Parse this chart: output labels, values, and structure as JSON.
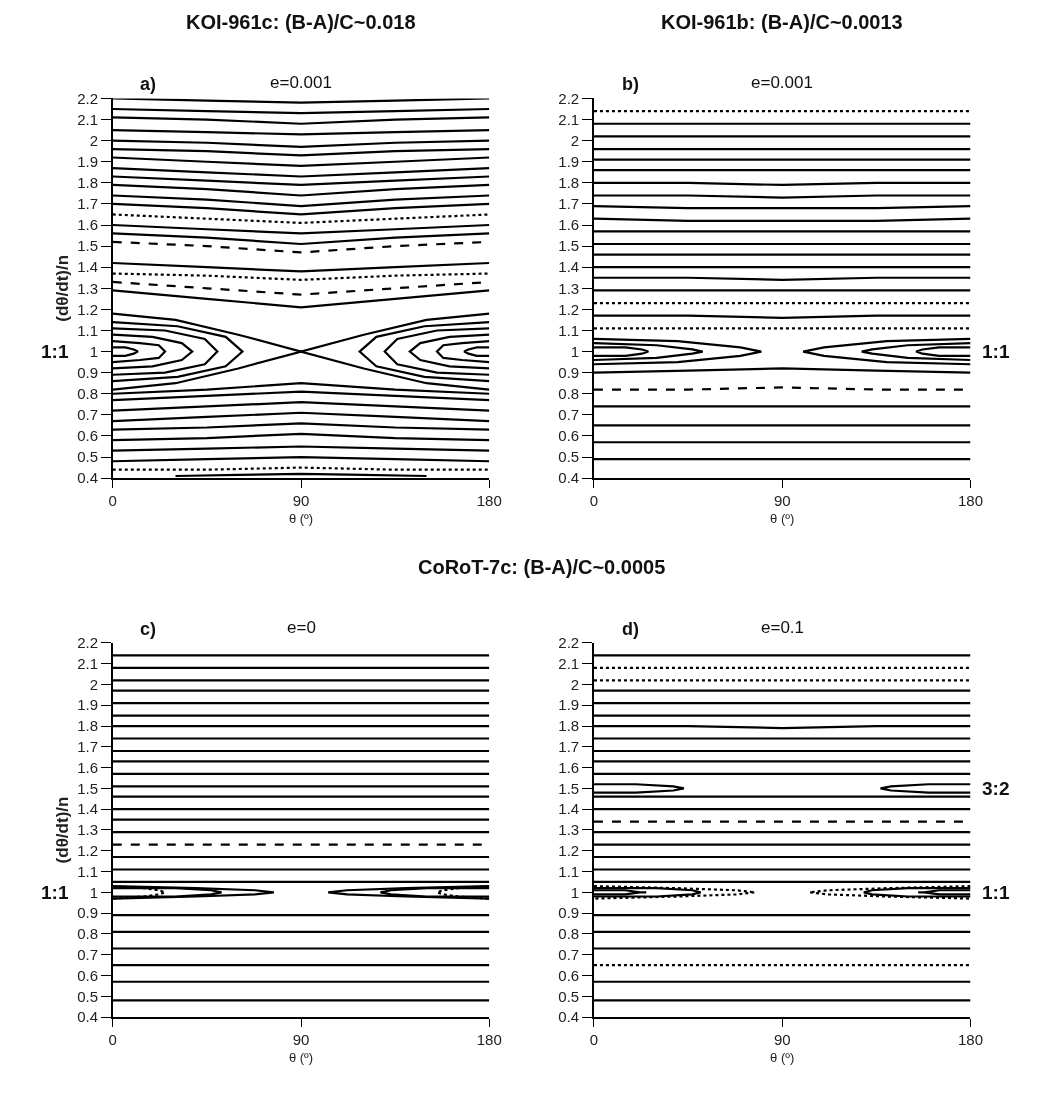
{
  "chart_data": [
    {
      "type": "line",
      "title": "KOI-961c: (B-A)/C~0.018",
      "subtitle": "e=0.001",
      "xlabel": "θ (º)",
      "ylabel": "(dθ/dt)/n",
      "xlim": [
        0,
        180
      ],
      "ylim": [
        0.4,
        2.2
      ],
      "xticks": [
        0,
        90,
        180
      ],
      "yticks": [
        0.4,
        0.5,
        0.6,
        0.7,
        0.8,
        0.9,
        1,
        1.1,
        1.2,
        1.3,
        1.4,
        1.5,
        1.6,
        1.7,
        1.8,
        1.9,
        2,
        2.1,
        2.2
      ],
      "marker": "none",
      "annotations": [
        "a)",
        "1:1"
      ],
      "series": [
        {
          "color": "#000000",
          "x": [
            0,
            45,
            90,
            135,
            180
          ],
          "values": [
            2.2,
            2.19,
            2.18,
            2.19,
            2.2
          ]
        },
        {
          "color": "#000000",
          "x": [
            0,
            45,
            90,
            135,
            180
          ],
          "values": [
            2.15,
            2.14,
            2.13,
            2.14,
            2.15
          ]
        },
        {
          "color": "#000000",
          "x": [
            0,
            45,
            90,
            135,
            180
          ],
          "values": [
            2.11,
            2.1,
            2.08,
            2.1,
            2.11
          ]
        },
        {
          "color": "#000000",
          "x": [
            0,
            45,
            90,
            135,
            180
          ],
          "values": [
            2.05,
            2.04,
            2.03,
            2.04,
            2.05
          ]
        },
        {
          "color": "#000000",
          "x": [
            0,
            45,
            90,
            135,
            180
          ],
          "values": [
            2.0,
            1.99,
            1.97,
            1.99,
            2.0
          ]
        },
        {
          "color": "#000000",
          "x": [
            0,
            45,
            90,
            135,
            180
          ],
          "values": [
            1.96,
            1.95,
            1.93,
            1.95,
            1.96
          ]
        },
        {
          "color": "#000000",
          "x": [
            0,
            45,
            90,
            135,
            180
          ],
          "values": [
            1.92,
            1.9,
            1.88,
            1.9,
            1.92
          ]
        },
        {
          "color": "#000000",
          "x": [
            0,
            45,
            90,
            135,
            180
          ],
          "values": [
            1.87,
            1.85,
            1.83,
            1.85,
            1.87
          ]
        },
        {
          "color": "#000000",
          "x": [
            0,
            45,
            90,
            135,
            180
          ],
          "values": [
            1.83,
            1.81,
            1.79,
            1.81,
            1.83
          ]
        },
        {
          "color": "#000000",
          "x": [
            0,
            45,
            90,
            135,
            180
          ],
          "values": [
            1.79,
            1.77,
            1.74,
            1.77,
            1.79
          ]
        },
        {
          "color": "#000000",
          "x": [
            0,
            45,
            90,
            135,
            180
          ],
          "values": [
            1.74,
            1.72,
            1.69,
            1.72,
            1.74
          ]
        },
        {
          "color": "#000000",
          "x": [
            0,
            45,
            90,
            135,
            180
          ],
          "values": [
            1.7,
            1.68,
            1.65,
            1.68,
            1.7
          ]
        },
        {
          "color": "#000000",
          "line_style": "dotted",
          "x": [
            0,
            45,
            90,
            135,
            180
          ],
          "values": [
            1.65,
            1.63,
            1.61,
            1.63,
            1.65
          ]
        },
        {
          "color": "#000000",
          "x": [
            0,
            45,
            90,
            135,
            180
          ],
          "values": [
            1.6,
            1.58,
            1.56,
            1.58,
            1.6
          ]
        },
        {
          "color": "#000000",
          "x": [
            0,
            45,
            90,
            135,
            180
          ],
          "values": [
            1.56,
            1.54,
            1.51,
            1.54,
            1.56
          ]
        },
        {
          "color": "#000000",
          "line_style": "dashed",
          "x": [
            0,
            45,
            90,
            135,
            180
          ],
          "values": [
            1.52,
            1.5,
            1.47,
            1.5,
            1.52
          ]
        },
        {
          "color": "#000000",
          "x": [
            0,
            45,
            90,
            135,
            180
          ],
          "values": [
            1.42,
            1.4,
            1.38,
            1.4,
            1.42
          ]
        },
        {
          "color": "#000000",
          "line_style": "dotted",
          "x": [
            0,
            45,
            90,
            135,
            180
          ],
          "values": [
            1.37,
            1.36,
            1.34,
            1.36,
            1.37
          ]
        },
        {
          "color": "#000000",
          "line_style": "dashed",
          "x": [
            0,
            45,
            90,
            135,
            180
          ],
          "values": [
            1.33,
            1.3,
            1.27,
            1.3,
            1.33
          ]
        },
        {
          "color": "#000000",
          "x": [
            0,
            45,
            90,
            135,
            180
          ],
          "values": [
            1.29,
            1.25,
            1.21,
            1.25,
            1.29
          ]
        },
        {
          "color": "#000000",
          "x": [
            0,
            30,
            60,
            90,
            120,
            150,
            180
          ],
          "values": [
            1.18,
            1.15,
            1.08,
            1.0,
            1.08,
            1.15,
            1.18
          ]
        },
        {
          "color": "#000000",
          "x": [
            0,
            30,
            60,
            90,
            120,
            150,
            180
          ],
          "values": [
            0.82,
            0.85,
            0.92,
            1.0,
            0.92,
            0.85,
            0.82
          ]
        },
        {
          "color": "#000000",
          "x": [
            0,
            6,
            10,
            12,
            10,
            6,
            0
          ],
          "values": [
            1.02,
            1.02,
            1.01,
            1,
            0.99,
            0.98,
            0.98
          ]
        },
        {
          "color": "#000000",
          "x": [
            0,
            13,
            22,
            25,
            22,
            13,
            0
          ],
          "values": [
            1.05,
            1.04,
            1.03,
            1,
            0.97,
            0.96,
            0.95
          ]
        },
        {
          "color": "#000000",
          "x": [
            0,
            19,
            33,
            38,
            33,
            19,
            0
          ],
          "values": [
            1.08,
            1.07,
            1.04,
            1,
            0.96,
            0.93,
            0.92
          ]
        },
        {
          "color": "#000000",
          "x": [
            0,
            25,
            44,
            50,
            44,
            25,
            0
          ],
          "values": [
            1.11,
            1.1,
            1.06,
            1,
            0.94,
            0.9,
            0.89
          ]
        },
        {
          "color": "#000000",
          "x": [
            0,
            31,
            54,
            62,
            54,
            31,
            0
          ],
          "values": [
            1.14,
            1.12,
            1.07,
            1,
            0.93,
            0.88,
            0.86
          ]
        },
        {
          "color": "#000000",
          "x": [
            180,
            174,
            170,
            168,
            170,
            174,
            180
          ],
          "values": [
            1.02,
            1.02,
            1.01,
            1,
            0.99,
            0.98,
            0.98
          ]
        },
        {
          "color": "#000000",
          "x": [
            180,
            167,
            158,
            155,
            158,
            167,
            180
          ],
          "values": [
            1.05,
            1.04,
            1.03,
            1,
            0.97,
            0.96,
            0.95
          ]
        },
        {
          "color": "#000000",
          "x": [
            180,
            161,
            147,
            142,
            147,
            161,
            180
          ],
          "values": [
            1.08,
            1.07,
            1.04,
            1,
            0.96,
            0.93,
            0.92
          ]
        },
        {
          "color": "#000000",
          "x": [
            180,
            155,
            136,
            130,
            136,
            155,
            180
          ],
          "values": [
            1.11,
            1.1,
            1.06,
            1,
            0.94,
            0.9,
            0.89
          ]
        },
        {
          "color": "#000000",
          "x": [
            180,
            149,
            126,
            118,
            126,
            149,
            180
          ],
          "values": [
            1.14,
            1.12,
            1.07,
            1,
            0.93,
            0.88,
            0.86
          ]
        },
        {
          "color": "#000000",
          "x": [
            0,
            45,
            90,
            135,
            180
          ],
          "values": [
            0.8,
            0.82,
            0.85,
            0.82,
            0.8
          ]
        },
        {
          "color": "#000000",
          "x": [
            0,
            45,
            90,
            135,
            180
          ],
          "values": [
            0.77,
            0.79,
            0.81,
            0.79,
            0.77
          ]
        },
        {
          "color": "#000000",
          "x": [
            0,
            45,
            90,
            135,
            180
          ],
          "values": [
            0.72,
            0.74,
            0.76,
            0.74,
            0.72
          ]
        },
        {
          "color": "#000000",
          "x": [
            0,
            45,
            90,
            135,
            180
          ],
          "values": [
            0.67,
            0.69,
            0.71,
            0.69,
            0.67
          ]
        },
        {
          "color": "#000000",
          "x": [
            0,
            45,
            90,
            135,
            180
          ],
          "values": [
            0.63,
            0.64,
            0.66,
            0.64,
            0.63
          ]
        },
        {
          "color": "#000000",
          "x": [
            0,
            45,
            90,
            135,
            180
          ],
          "values": [
            0.58,
            0.59,
            0.61,
            0.59,
            0.58
          ]
        },
        {
          "color": "#000000",
          "x": [
            0,
            45,
            90,
            135,
            180
          ],
          "values": [
            0.53,
            0.54,
            0.55,
            0.54,
            0.53
          ]
        },
        {
          "color": "#000000",
          "x": [
            0,
            45,
            90,
            135,
            180
          ],
          "values": [
            0.48,
            0.49,
            0.5,
            0.49,
            0.48
          ]
        },
        {
          "color": "#000000",
          "line_style": "dotted",
          "x": [
            0,
            45,
            90,
            135,
            180
          ],
          "values": [
            0.44,
            0.44,
            0.45,
            0.44,
            0.44
          ]
        },
        {
          "color": "#000000",
          "x": [
            30,
            60,
            90,
            120,
            150
          ],
          "values": [
            0.41,
            0.415,
            0.42,
            0.415,
            0.41
          ]
        }
      ]
    },
    {
      "type": "line",
      "title": "KOI-961b: (B-A)/C~0.0013",
      "subtitle": "e=0.001",
      "xlabel": "θ (º)",
      "xlim": [
        0,
        180
      ],
      "ylim": [
        0.4,
        2.2
      ],
      "xticks": [
        0,
        90,
        180
      ],
      "yticks": [
        0.4,
        0.5,
        0.6,
        0.7,
        0.8,
        0.9,
        1,
        1.1,
        1.2,
        1.3,
        1.4,
        1.5,
        1.6,
        1.7,
        1.8,
        1.9,
        2,
        2.1,
        2.2
      ],
      "marker": "none",
      "annotations": [
        "b)",
        "1:1"
      ],
      "series": [
        {
          "color": "#000000",
          "line_style": "dotted",
          "x": [
            0,
            180
          ],
          "values": [
            2.14,
            2.14
          ]
        },
        {
          "color": "#000000",
          "x": [
            0,
            180
          ],
          "values": [
            2.08,
            2.08
          ]
        },
        {
          "color": "#000000",
          "x": [
            0,
            180
          ],
          "values": [
            2.02,
            2.02
          ]
        },
        {
          "color": "#000000",
          "x": [
            0,
            180
          ],
          "values": [
            1.96,
            1.96
          ]
        },
        {
          "color": "#000000",
          "x": [
            0,
            180
          ],
          "values": [
            1.91,
            1.91
          ]
        },
        {
          "color": "#000000",
          "x": [
            0,
            180
          ],
          "values": [
            1.86,
            1.86
          ]
        },
        {
          "color": "#000000",
          "x": [
            0,
            45,
            90,
            135,
            180
          ],
          "values": [
            1.8,
            1.8,
            1.79,
            1.8,
            1.8
          ]
        },
        {
          "color": "#000000",
          "x": [
            0,
            45,
            90,
            135,
            180
          ],
          "values": [
            1.74,
            1.74,
            1.73,
            1.74,
            1.74
          ]
        },
        {
          "color": "#000000",
          "x": [
            0,
            45,
            90,
            135,
            180
          ],
          "values": [
            1.69,
            1.68,
            1.68,
            1.68,
            1.69
          ]
        },
        {
          "color": "#000000",
          "x": [
            0,
            45,
            90,
            135,
            180
          ],
          "values": [
            1.63,
            1.62,
            1.62,
            1.62,
            1.63
          ]
        },
        {
          "color": "#000000",
          "x": [
            0,
            45,
            90,
            135,
            180
          ],
          "values": [
            1.57,
            1.57,
            1.57,
            1.57,
            1.57
          ]
        },
        {
          "color": "#000000",
          "x": [
            0,
            180
          ],
          "values": [
            1.51,
            1.51
          ]
        },
        {
          "color": "#000000",
          "x": [
            0,
            180
          ],
          "values": [
            1.46,
            1.46
          ]
        },
        {
          "color": "#000000",
          "x": [
            0,
            180
          ],
          "values": [
            1.4,
            1.4
          ]
        },
        {
          "color": "#000000",
          "x": [
            0,
            45,
            90,
            135,
            180
          ],
          "values": [
            1.35,
            1.35,
            1.34,
            1.35,
            1.35
          ]
        },
        {
          "color": "#000000",
          "x": [
            0,
            180
          ],
          "values": [
            1.29,
            1.29
          ]
        },
        {
          "color": "#000000",
          "line_style": "dotted",
          "x": [
            0,
            180
          ],
          "values": [
            1.23,
            1.23
          ]
        },
        {
          "color": "#000000",
          "x": [
            0,
            45,
            90,
            135,
            180
          ],
          "values": [
            1.17,
            1.17,
            1.16,
            1.17,
            1.17
          ]
        },
        {
          "color": "#000000",
          "line_style": "dotted",
          "x": [
            0,
            180
          ],
          "values": [
            1.11,
            1.11
          ]
        },
        {
          "color": "#000000",
          "x": [
            0,
            40,
            70,
            80,
            70,
            40,
            0
          ],
          "values": [
            1.06,
            1.05,
            1.02,
            1,
            0.98,
            0.95,
            0.94
          ]
        },
        {
          "color": "#000000",
          "x": [
            0,
            30,
            47,
            52,
            47,
            30,
            0
          ],
          "values": [
            1.04,
            1.03,
            1.01,
            1,
            0.99,
            0.97,
            0.96
          ]
        },
        {
          "color": "#000000",
          "x": [
            0,
            15,
            23,
            26,
            23,
            15,
            0
          ],
          "values": [
            1.02,
            1.02,
            1.01,
            1,
            0.99,
            0.98,
            0.98
          ]
        },
        {
          "color": "#000000",
          "x": [
            180,
            140,
            110,
            100,
            110,
            140,
            180
          ],
          "values": [
            1.06,
            1.05,
            1.02,
            1,
            0.98,
            0.95,
            0.94
          ]
        },
        {
          "color": "#000000",
          "x": [
            180,
            150,
            133,
            128,
            133,
            150,
            180
          ],
          "values": [
            1.04,
            1.03,
            1.01,
            1,
            0.99,
            0.97,
            0.96
          ]
        },
        {
          "color": "#000000",
          "x": [
            180,
            165,
            157,
            154,
            157,
            165,
            180
          ],
          "values": [
            1.02,
            1.02,
            1.01,
            1,
            0.99,
            0.98,
            0.98
          ]
        },
        {
          "color": "#000000",
          "x": [
            0,
            45,
            90,
            135,
            180
          ],
          "values": [
            0.9,
            0.91,
            0.92,
            0.91,
            0.9
          ]
        },
        {
          "color": "#000000",
          "line_style": "dashed",
          "x": [
            0,
            45,
            90,
            135,
            180
          ],
          "values": [
            0.82,
            0.82,
            0.83,
            0.82,
            0.82
          ]
        },
        {
          "color": "#000000",
          "x": [
            0,
            180
          ],
          "values": [
            0.74,
            0.74
          ]
        },
        {
          "color": "#000000",
          "x": [
            0,
            180
          ],
          "values": [
            0.65,
            0.65
          ]
        },
        {
          "color": "#000000",
          "x": [
            0,
            180
          ],
          "values": [
            0.57,
            0.57
          ]
        },
        {
          "color": "#000000",
          "x": [
            0,
            180
          ],
          "values": [
            0.49,
            0.49
          ]
        }
      ]
    },
    {
      "type": "line",
      "title": "CoRoT-7c: (B-A)/C~0.0005",
      "subtitle": "e=0",
      "xlabel": "θ (º)",
      "ylabel": "(dθ/dt)/n",
      "xlim": [
        0,
        180
      ],
      "ylim": [
        0.4,
        2.2
      ],
      "xticks": [
        0,
        90,
        180
      ],
      "yticks": [
        0.4,
        0.5,
        0.6,
        0.7,
        0.8,
        0.9,
        1,
        1.1,
        1.2,
        1.3,
        1.4,
        1.5,
        1.6,
        1.7,
        1.8,
        1.9,
        2,
        2.1,
        2.2
      ],
      "marker": "none",
      "annotations": [
        "c)",
        "1:1"
      ],
      "series": [
        {
          "color": "#000000",
          "x": [
            0,
            180
          ],
          "values": [
            2.14,
            2.14
          ]
        },
        {
          "color": "#000000",
          "x": [
            0,
            180
          ],
          "values": [
            2.08,
            2.08
          ]
        },
        {
          "color": "#000000",
          "x": [
            0,
            180
          ],
          "values": [
            2.02,
            2.02
          ]
        },
        {
          "color": "#000000",
          "x": [
            0,
            180
          ],
          "values": [
            1.97,
            1.97
          ]
        },
        {
          "color": "#000000",
          "x": [
            0,
            180
          ],
          "values": [
            1.91,
            1.91
          ]
        },
        {
          "color": "#000000",
          "x": [
            0,
            180
          ],
          "values": [
            1.85,
            1.85
          ]
        },
        {
          "color": "#000000",
          "x": [
            0,
            180
          ],
          "values": [
            1.8,
            1.8
          ]
        },
        {
          "color": "#000000",
          "x": [
            0,
            180
          ],
          "values": [
            1.74,
            1.74
          ]
        },
        {
          "color": "#000000",
          "x": [
            0,
            180
          ],
          "values": [
            1.68,
            1.68
          ]
        },
        {
          "color": "#000000",
          "x": [
            0,
            180
          ],
          "values": [
            1.63,
            1.63
          ]
        },
        {
          "color": "#000000",
          "x": [
            0,
            180
          ],
          "values": [
            1.57,
            1.57
          ]
        },
        {
          "color": "#000000",
          "x": [
            0,
            180
          ],
          "values": [
            1.51,
            1.51
          ]
        },
        {
          "color": "#000000",
          "x": [
            0,
            180
          ],
          "values": [
            1.46,
            1.46
          ]
        },
        {
          "color": "#000000",
          "x": [
            0,
            180
          ],
          "values": [
            1.4,
            1.4
          ]
        },
        {
          "color": "#000000",
          "x": [
            0,
            180
          ],
          "values": [
            1.35,
            1.35
          ]
        },
        {
          "color": "#000000",
          "x": [
            0,
            180
          ],
          "values": [
            1.29,
            1.29
          ]
        },
        {
          "color": "#000000",
          "line_style": "dashed",
          "x": [
            0,
            180
          ],
          "values": [
            1.23,
            1.23
          ]
        },
        {
          "color": "#000000",
          "x": [
            0,
            180
          ],
          "values": [
            1.17,
            1.17
          ]
        },
        {
          "color": "#000000",
          "x": [
            0,
            180
          ],
          "values": [
            1.11,
            1.11
          ]
        },
        {
          "color": "#000000",
          "x": [
            0,
            180
          ],
          "values": [
            1.05,
            1.05
          ]
        },
        {
          "color": "#000000",
          "x": [
            0,
            40,
            68,
            77,
            68,
            40,
            0
          ],
          "values": [
            1.03,
            1.02,
            1.01,
            1,
            0.99,
            0.98,
            0.97
          ]
        },
        {
          "color": "#000000",
          "x": [
            0,
            30,
            47,
            52,
            47,
            30,
            0
          ],
          "values": [
            1.02,
            1.02,
            1.01,
            1,
            0.99,
            0.98,
            0.98
          ]
        },
        {
          "color": "#000000",
          "line_style": "dotted",
          "x": [
            0,
            15,
            22,
            25,
            22,
            15,
            0
          ],
          "values": [
            1.03,
            1.02,
            1.01,
            1,
            0.99,
            0.98,
            0.97
          ]
        },
        {
          "color": "#000000",
          "x": [
            180,
            140,
            112,
            103,
            112,
            140,
            180
          ],
          "values": [
            1.03,
            1.02,
            1.01,
            1,
            0.99,
            0.98,
            0.97
          ]
        },
        {
          "color": "#000000",
          "x": [
            180,
            150,
            133,
            128,
            133,
            150,
            180
          ],
          "values": [
            1.02,
            1.02,
            1.01,
            1,
            0.99,
            0.98,
            0.98
          ]
        },
        {
          "color": "#000000",
          "line_style": "dotted",
          "x": [
            180,
            165,
            158,
            155,
            158,
            165,
            180
          ],
          "values": [
            1.03,
            1.02,
            1.01,
            1,
            0.99,
            0.98,
            0.97
          ]
        },
        {
          "color": "#000000",
          "x": [
            0,
            180
          ],
          "values": [
            0.89,
            0.89
          ]
        },
        {
          "color": "#000000",
          "x": [
            0,
            180
          ],
          "values": [
            0.81,
            0.81
          ]
        },
        {
          "color": "#000000",
          "x": [
            0,
            180
          ],
          "values": [
            0.73,
            0.73
          ]
        },
        {
          "color": "#000000",
          "x": [
            0,
            180
          ],
          "values": [
            0.65,
            0.65
          ]
        },
        {
          "color": "#000000",
          "x": [
            0,
            180
          ],
          "values": [
            0.57,
            0.57
          ]
        },
        {
          "color": "#000000",
          "x": [
            0,
            180
          ],
          "values": [
            0.48,
            0.48
          ]
        }
      ]
    },
    {
      "type": "line",
      "subtitle": "e=0.1",
      "xlabel": "θ (º)",
      "xlim": [
        0,
        180
      ],
      "ylim": [
        0.4,
        2.2
      ],
      "xticks": [
        0,
        90,
        180
      ],
      "yticks": [
        0.4,
        0.5,
        0.6,
        0.7,
        0.8,
        0.9,
        1,
        1.1,
        1.2,
        1.3,
        1.4,
        1.5,
        1.6,
        1.7,
        1.8,
        1.9,
        2,
        2.1,
        2.2
      ],
      "marker": "none",
      "annotations": [
        "d)",
        "3:2",
        "1:1"
      ],
      "series": [
        {
          "color": "#000000",
          "x": [
            0,
            180
          ],
          "values": [
            2.14,
            2.14
          ]
        },
        {
          "color": "#000000",
          "line_style": "dotted",
          "x": [
            0,
            180
          ],
          "values": [
            2.08,
            2.08
          ]
        },
        {
          "color": "#000000",
          "line_style": "dotted",
          "x": [
            0,
            180
          ],
          "values": [
            2.02,
            2.02
          ]
        },
        {
          "color": "#000000",
          "x": [
            0,
            180
          ],
          "values": [
            1.97,
            1.97
          ]
        },
        {
          "color": "#000000",
          "x": [
            0,
            180
          ],
          "values": [
            1.91,
            1.91
          ]
        },
        {
          "color": "#000000",
          "x": [
            0,
            180
          ],
          "values": [
            1.85,
            1.85
          ]
        },
        {
          "color": "#000000",
          "x": [
            0,
            45,
            90,
            135,
            180
          ],
          "values": [
            1.8,
            1.8,
            1.79,
            1.8,
            1.8
          ]
        },
        {
          "color": "#000000",
          "x": [
            0,
            180
          ],
          "values": [
            1.74,
            1.74
          ]
        },
        {
          "color": "#000000",
          "x": [
            0,
            180
          ],
          "values": [
            1.68,
            1.68
          ]
        },
        {
          "color": "#000000",
          "x": [
            0,
            180
          ],
          "values": [
            1.63,
            1.63
          ]
        },
        {
          "color": "#000000",
          "x": [
            0,
            180
          ],
          "values": [
            1.57,
            1.57
          ]
        },
        {
          "color": "#000000",
          "x": [
            0,
            20,
            38,
            43,
            38,
            20,
            0
          ],
          "values": [
            1.52,
            1.52,
            1.51,
            1.5,
            1.49,
            1.48,
            1.48
          ]
        },
        {
          "color": "#000000",
          "x": [
            180,
            160,
            142,
            137,
            142,
            160,
            180
          ],
          "values": [
            1.52,
            1.52,
            1.51,
            1.5,
            1.49,
            1.48,
            1.48
          ]
        },
        {
          "color": "#000000",
          "x": [
            0,
            180
          ],
          "values": [
            1.46,
            1.46
          ]
        },
        {
          "color": "#000000",
          "x": [
            0,
            180
          ],
          "values": [
            1.4,
            1.4
          ]
        },
        {
          "color": "#000000",
          "line_style": "dashed",
          "x": [
            0,
            180
          ],
          "values": [
            1.34,
            1.34
          ]
        },
        {
          "color": "#000000",
          "x": [
            0,
            180
          ],
          "values": [
            1.29,
            1.29
          ]
        },
        {
          "color": "#000000",
          "x": [
            0,
            180
          ],
          "values": [
            1.23,
            1.23
          ]
        },
        {
          "color": "#000000",
          "x": [
            0,
            180
          ],
          "values": [
            1.17,
            1.17
          ]
        },
        {
          "color": "#000000",
          "x": [
            0,
            180
          ],
          "values": [
            1.11,
            1.11
          ]
        },
        {
          "color": "#000000",
          "x": [
            0,
            180
          ],
          "values": [
            1.05,
            1.05
          ]
        },
        {
          "color": "#000000",
          "line_style": "dotted",
          "x": [
            0,
            40,
            68,
            77,
            68,
            40,
            0
          ],
          "values": [
            1.03,
            1.02,
            1.01,
            1,
            0.99,
            0.98,
            0.97
          ]
        },
        {
          "color": "#000000",
          "x": [
            0,
            30,
            47,
            51,
            47,
            30,
            0
          ],
          "values": [
            1.02,
            1.02,
            1.01,
            1,
            0.99,
            0.98,
            0.98
          ]
        },
        {
          "color": "#000000",
          "x": [
            0,
            15,
            22,
            25,
            22,
            15,
            0
          ],
          "values": [
            1.01,
            1.01,
            1.0,
            1,
            1.0,
            0.99,
            0.99
          ]
        },
        {
          "color": "#000000",
          "line_style": "dotted",
          "x": [
            180,
            140,
            112,
            103,
            112,
            140,
            180
          ],
          "values": [
            1.03,
            1.02,
            1.01,
            1,
            0.99,
            0.98,
            0.97
          ]
        },
        {
          "color": "#000000",
          "x": [
            180,
            150,
            133,
            129,
            133,
            150,
            180
          ],
          "values": [
            1.02,
            1.02,
            1.01,
            1,
            0.99,
            0.98,
            0.98
          ]
        },
        {
          "color": "#000000",
          "x": [
            180,
            165,
            158,
            155,
            158,
            165,
            180
          ],
          "values": [
            1.01,
            1.01,
            1.0,
            1,
            1.0,
            0.99,
            0.99
          ]
        },
        {
          "color": "#000000",
          "x": [
            0,
            180
          ],
          "values": [
            0.89,
            0.89
          ]
        },
        {
          "color": "#000000",
          "x": [
            0,
            180
          ],
          "values": [
            0.81,
            0.81
          ]
        },
        {
          "color": "#000000",
          "x": [
            0,
            180
          ],
          "values": [
            0.73,
            0.73
          ]
        },
        {
          "color": "#000000",
          "line_style": "dotted",
          "x": [
            0,
            180
          ],
          "values": [
            0.65,
            0.65
          ]
        },
        {
          "color": "#000000",
          "x": [
            0,
            180
          ],
          "values": [
            0.57,
            0.57
          ]
        },
        {
          "color": "#000000",
          "x": [
            0,
            180
          ],
          "values": [
            0.48,
            0.48
          ]
        }
      ]
    }
  ]
}
